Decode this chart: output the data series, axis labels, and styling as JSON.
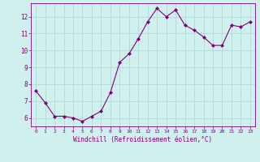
{
  "x": [
    0,
    1,
    2,
    3,
    4,
    5,
    6,
    7,
    8,
    9,
    10,
    11,
    12,
    13,
    14,
    15,
    16,
    17,
    18,
    19,
    20,
    21,
    22,
    23
  ],
  "y": [
    7.6,
    6.9,
    6.1,
    6.1,
    6.0,
    5.8,
    6.1,
    6.4,
    7.5,
    9.3,
    9.8,
    10.7,
    11.7,
    12.5,
    12.0,
    12.4,
    11.5,
    11.2,
    10.8,
    10.3,
    10.3,
    11.5,
    11.4,
    11.7
  ],
  "line_color": "#800080",
  "marker": "D",
  "marker_size": 2,
  "bg_color": "#d0f0ee",
  "grid_color": "#aad4d0",
  "xlabel": "Windchill (Refroidissement éolien,°C)",
  "xlabel_color": "#800080",
  "tick_color": "#800080",
  "ylim": [
    5.5,
    12.8
  ],
  "xlim": [
    -0.5,
    23.5
  ],
  "yticks": [
    6,
    7,
    8,
    9,
    10,
    11,
    12
  ],
  "xticks": [
    0,
    1,
    2,
    3,
    4,
    5,
    6,
    7,
    8,
    9,
    10,
    11,
    12,
    13,
    14,
    15,
    16,
    17,
    18,
    19,
    20,
    21,
    22,
    23
  ],
  "figsize": [
    3.2,
    2.0
  ],
  "dpi": 100
}
